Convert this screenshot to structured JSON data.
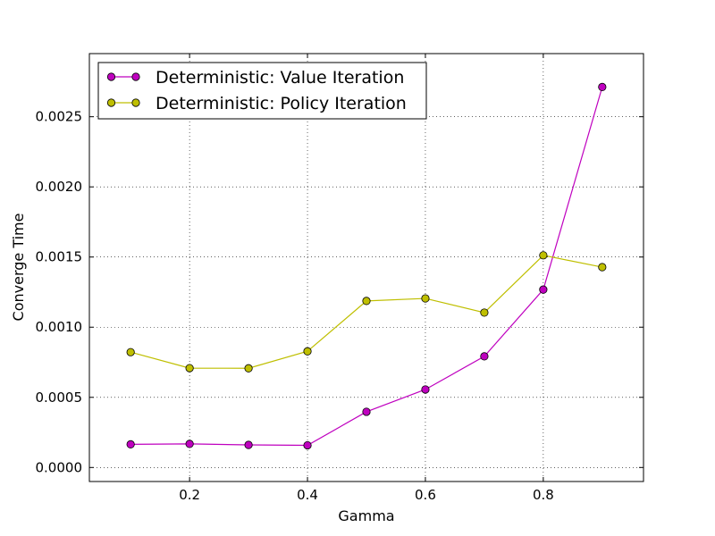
{
  "chart_data": {
    "type": "line",
    "title": "",
    "xlabel": "Gamma",
    "ylabel": "Converge Time",
    "xlim": [
      0.03,
      0.97
    ],
    "ylim": [
      -0.0001,
      0.00295
    ],
    "xticks": [
      0.2,
      0.4,
      0.6,
      0.8
    ],
    "xtick_labels": [
      "0.2",
      "0.4",
      "0.6",
      "0.8"
    ],
    "yticks": [
      0.0,
      0.0005,
      0.001,
      0.0015,
      0.002,
      0.0025
    ],
    "ytick_labels": [
      "0.0000",
      "0.0005",
      "0.0010",
      "0.0015",
      "0.0020",
      "0.0025"
    ],
    "grid": true,
    "legend_position": "top-left",
    "x": [
      0.1,
      0.2,
      0.3,
      0.4,
      0.5,
      0.6,
      0.7,
      0.8,
      0.9
    ],
    "series": [
      {
        "name": "Deterministic: Value Iteration",
        "color": "#bf00bf",
        "marker": "circle",
        "values": [
          0.000165,
          0.000168,
          0.000161,
          0.000158,
          0.000397,
          0.000556,
          0.000792,
          0.001268,
          0.002712
        ]
      },
      {
        "name": "Deterministic: Policy Iteration",
        "color": "#bfbf00",
        "marker": "circle",
        "values": [
          0.000822,
          0.000708,
          0.000707,
          0.000828,
          0.001187,
          0.001205,
          0.001104,
          0.001512,
          0.001428
        ]
      }
    ]
  }
}
